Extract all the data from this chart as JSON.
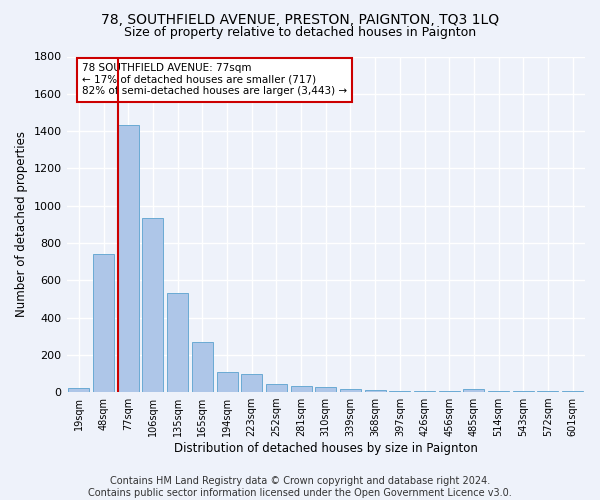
{
  "title1": "78, SOUTHFIELD AVENUE, PRESTON, PAIGNTON, TQ3 1LQ",
  "title2": "Size of property relative to detached houses in Paignton",
  "xlabel": "Distribution of detached houses by size in Paignton",
  "ylabel": "Number of detached properties",
  "categories": [
    "19sqm",
    "48sqm",
    "77sqm",
    "106sqm",
    "135sqm",
    "165sqm",
    "194sqm",
    "223sqm",
    "252sqm",
    "281sqm",
    "310sqm",
    "339sqm",
    "368sqm",
    "397sqm",
    "426sqm",
    "456sqm",
    "485sqm",
    "514sqm",
    "543sqm",
    "572sqm",
    "601sqm"
  ],
  "values": [
    20,
    740,
    1430,
    935,
    530,
    270,
    110,
    95,
    45,
    30,
    25,
    15,
    10,
    5,
    5,
    5,
    15,
    5,
    5,
    5,
    5
  ],
  "bar_color": "#aec6e8",
  "bar_edge_color": "#6aaad4",
  "highlight_index": 2,
  "vline_color": "#cc0000",
  "annotation_text": "78 SOUTHFIELD AVENUE: 77sqm\n← 17% of detached houses are smaller (717)\n82% of semi-detached houses are larger (3,443) →",
  "annotation_box_color": "#cc0000",
  "footer": "Contains HM Land Registry data © Crown copyright and database right 2024.\nContains public sector information licensed under the Open Government Licence v3.0.",
  "ylim": [
    0,
    1800
  ],
  "background_color": "#eef2fa",
  "grid_color": "#ffffff",
  "title1_fontsize": 10,
  "title2_fontsize": 9,
  "xlabel_fontsize": 8.5,
  "ylabel_fontsize": 8.5,
  "footer_fontsize": 7
}
